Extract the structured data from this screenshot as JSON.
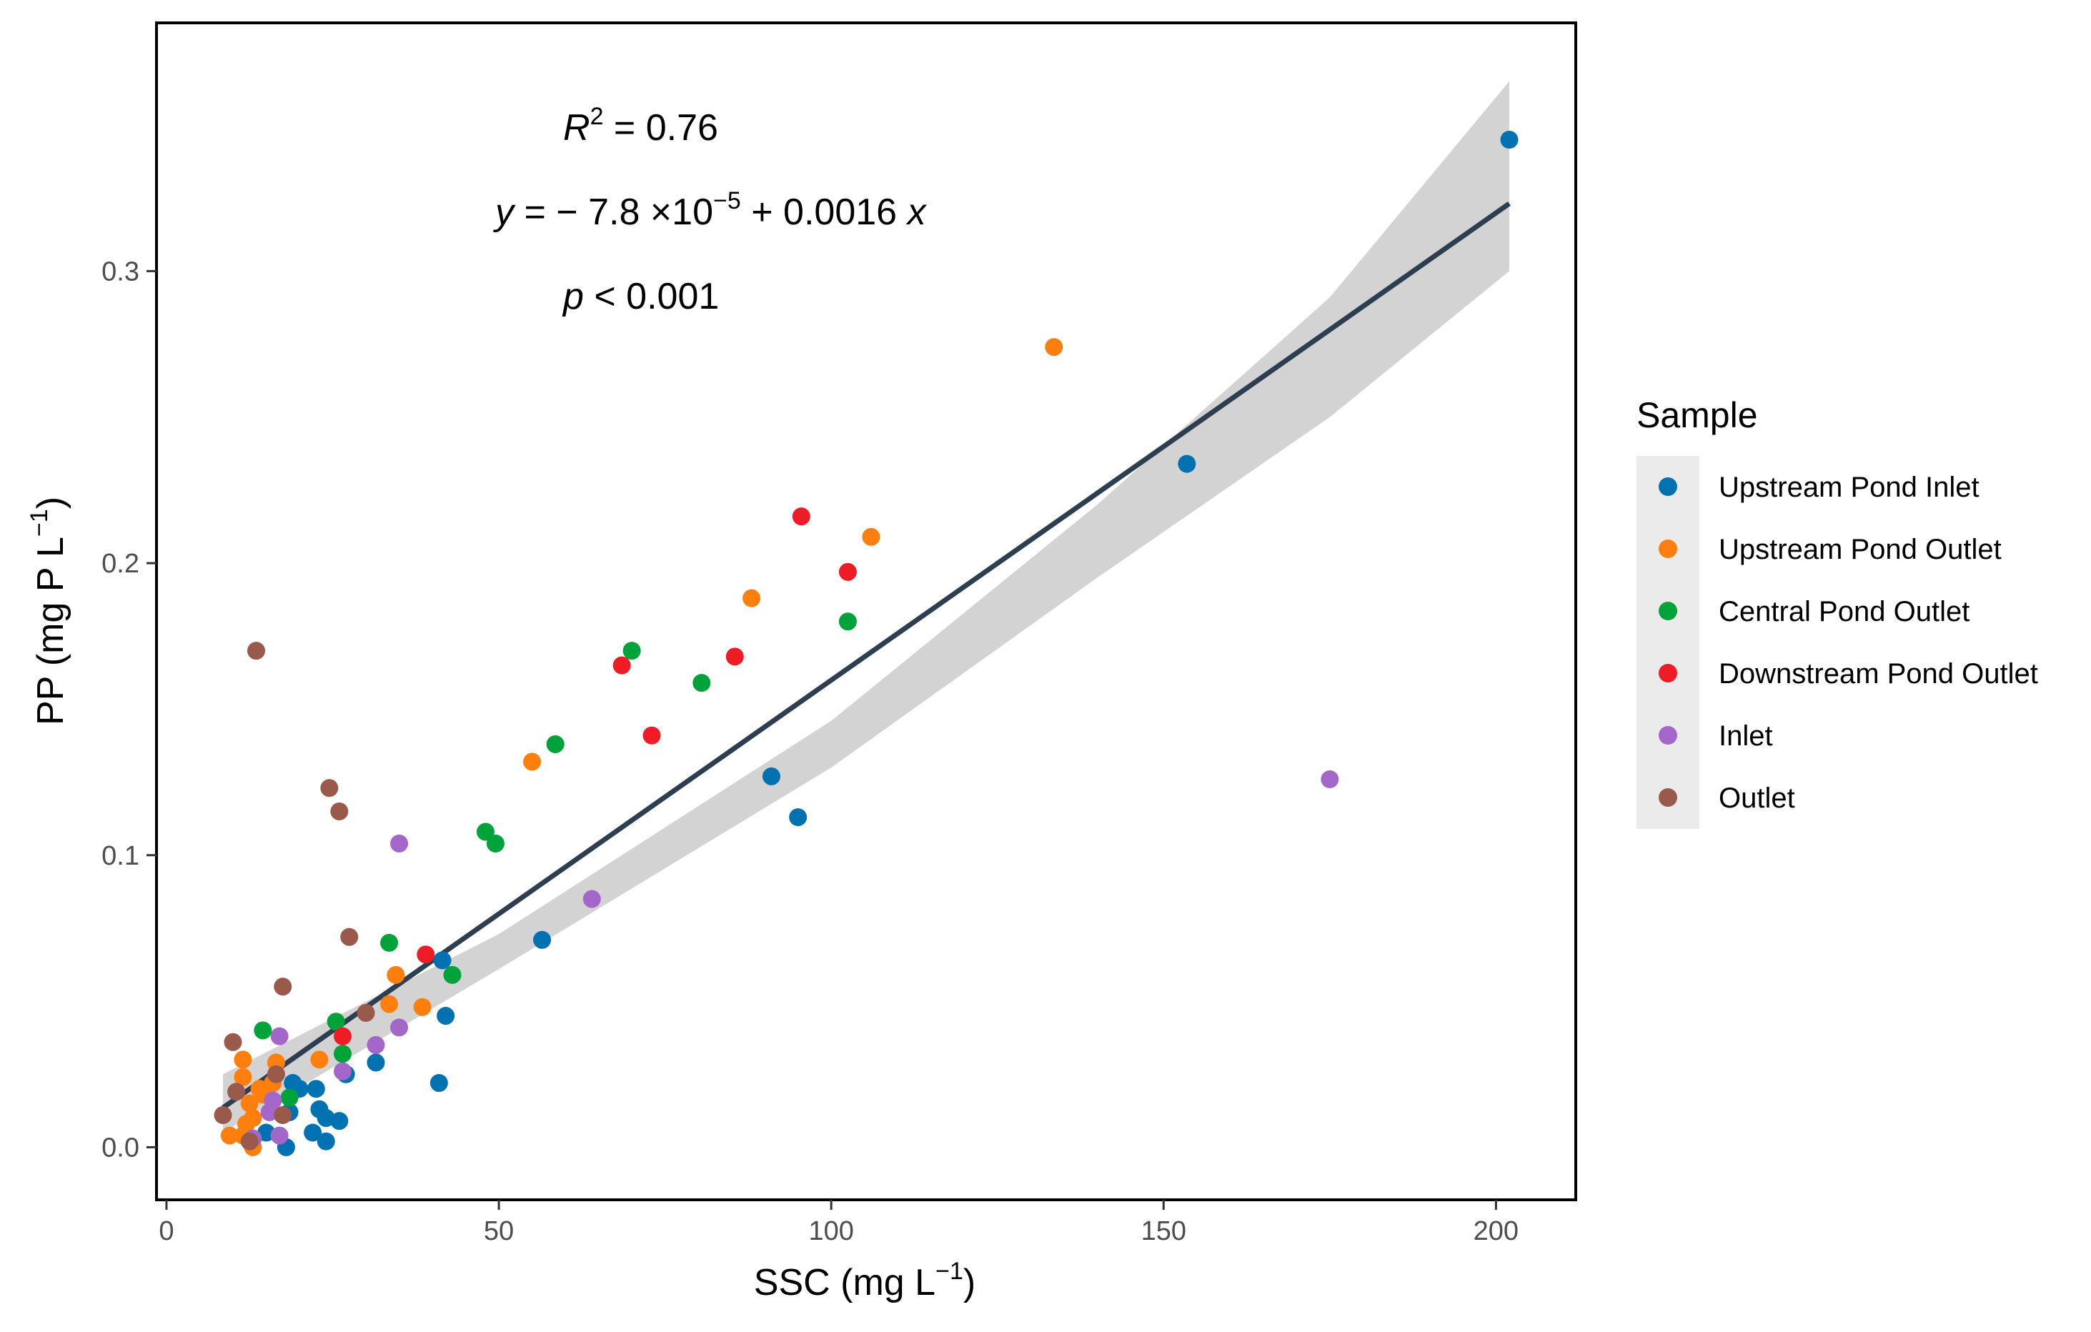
{
  "chart_data": {
    "type": "scatter",
    "xlabel_main": "SSC (mg L",
    "xlabel_sup": "−1",
    "xlabel_end": ")",
    "ylabel_main": "PP (mg P L",
    "ylabel_sup": "−1",
    "ylabel_end": ")",
    "xlim": [
      -1.5,
      212
    ],
    "ylim": [
      -0.018,
      0.385
    ],
    "xticks": [
      0,
      50,
      100,
      150,
      200
    ],
    "xtick_labels": [
      "0",
      "50",
      "100",
      "150",
      "200"
    ],
    "yticks": [
      0.0,
      0.1,
      0.2,
      0.3
    ],
    "ytick_labels": [
      "0.0",
      "0.1",
      "0.2",
      "0.3"
    ],
    "grid": false,
    "legend_placement": "right",
    "legend_title": "Sample",
    "annotations": {
      "r2_prefix": "R",
      "r2_sup": "2",
      "r2_rest": " = 0.76",
      "eq_y": "y",
      "eq_mid": " = − 7.8 ×10",
      "eq_sup": "−5",
      "eq_rest": " + 0.0016 ",
      "eq_x": "x",
      "p_p": "p",
      "p_rest": " < 0.001"
    },
    "regression": {
      "x_range": [
        8.5,
        202
      ],
      "intercept": -7.8e-05,
      "slope": 0.0016,
      "ci_lower": [
        0.005,
        0.061,
        0.13,
        0.195,
        0.25,
        0.3
      ],
      "ci_upper": [
        0.025,
        0.073,
        0.146,
        0.22,
        0.291,
        0.365
      ],
      "ci_x": [
        8.5,
        50,
        100,
        140,
        175,
        202
      ],
      "line_color": "#2c3e50",
      "band_color": "#d3d3d3"
    },
    "series": [
      {
        "name": "Upstream Pond Inlet",
        "color": "#0072b2",
        "points": [
          [
            202,
            0.345
          ],
          [
            153.5,
            0.234
          ],
          [
            91,
            0.127
          ],
          [
            95,
            0.113
          ],
          [
            56.5,
            0.071
          ],
          [
            41.5,
            0.064
          ],
          [
            42,
            0.045
          ],
          [
            41,
            0.022
          ],
          [
            31.5,
            0.029
          ],
          [
            27,
            0.025
          ],
          [
            22.5,
            0.02
          ],
          [
            23,
            0.013
          ],
          [
            24,
            0.01
          ],
          [
            26,
            0.009
          ],
          [
            22,
            0.005
          ],
          [
            24,
            0.002
          ],
          [
            18,
            0.0
          ],
          [
            19,
            0.022
          ],
          [
            20,
            0.02
          ],
          [
            18.5,
            0.012
          ],
          [
            15,
            0.005
          ]
        ]
      },
      {
        "name": "Upstream Pond Outlet",
        "color": "#ff7f0e",
        "points": [
          [
            133.5,
            0.274
          ],
          [
            106,
            0.209
          ],
          [
            88,
            0.188
          ],
          [
            55,
            0.132
          ],
          [
            34.5,
            0.059
          ],
          [
            33.5,
            0.049
          ],
          [
            38.5,
            0.048
          ],
          [
            23,
            0.03
          ],
          [
            16.5,
            0.029
          ],
          [
            11.5,
            0.03
          ],
          [
            11.5,
            0.024
          ],
          [
            16,
            0.022
          ],
          [
            14,
            0.02
          ],
          [
            12.5,
            0.015
          ],
          [
            13,
            0.01
          ],
          [
            12,
            0.008
          ],
          [
            9.5,
            0.004
          ],
          [
            11.5,
            0.004
          ],
          [
            13,
            0.0
          ],
          [
            14.5,
            0.018
          ]
        ]
      },
      {
        "name": "Central Pond Outlet",
        "color": "#00a23a",
        "points": [
          [
            70,
            0.17
          ],
          [
            102.5,
            0.18
          ],
          [
            80.5,
            0.159
          ],
          [
            58.5,
            0.138
          ],
          [
            48,
            0.108
          ],
          [
            49.5,
            0.104
          ],
          [
            43,
            0.059
          ],
          [
            33.5,
            0.07
          ],
          [
            25.5,
            0.043
          ],
          [
            26.5,
            0.032
          ],
          [
            14.5,
            0.04
          ],
          [
            18.5,
            0.017
          ]
        ]
      },
      {
        "name": "Downstream Pond Outlet",
        "color": "#ee1c25",
        "points": [
          [
            95.5,
            0.216
          ],
          [
            102.5,
            0.197
          ],
          [
            68.5,
            0.165
          ],
          [
            85.5,
            0.168
          ],
          [
            73,
            0.141
          ],
          [
            39,
            0.066
          ],
          [
            26.5,
            0.038
          ]
        ]
      },
      {
        "name": "Inlet",
        "color": "#a366c9",
        "points": [
          [
            175,
            0.126
          ],
          [
            35,
            0.104
          ],
          [
            64,
            0.085
          ],
          [
            35,
            0.041
          ],
          [
            31.5,
            0.035
          ],
          [
            17,
            0.038
          ],
          [
            16,
            0.016
          ],
          [
            26.5,
            0.026
          ],
          [
            17,
            0.004
          ],
          [
            13,
            0.003
          ],
          [
            15.5,
            0.012
          ]
        ]
      },
      {
        "name": "Outlet",
        "color": "#9a5a4b",
        "points": [
          [
            13.5,
            0.17
          ],
          [
            24.5,
            0.123
          ],
          [
            26,
            0.115
          ],
          [
            27.5,
            0.072
          ],
          [
            17.5,
            0.055
          ],
          [
            30,
            0.046
          ],
          [
            10,
            0.036
          ],
          [
            16.5,
            0.025
          ],
          [
            8.5,
            0.011
          ],
          [
            17.5,
            0.011
          ],
          [
            12.5,
            0.002
          ],
          [
            10.5,
            0.019
          ]
        ]
      }
    ]
  }
}
